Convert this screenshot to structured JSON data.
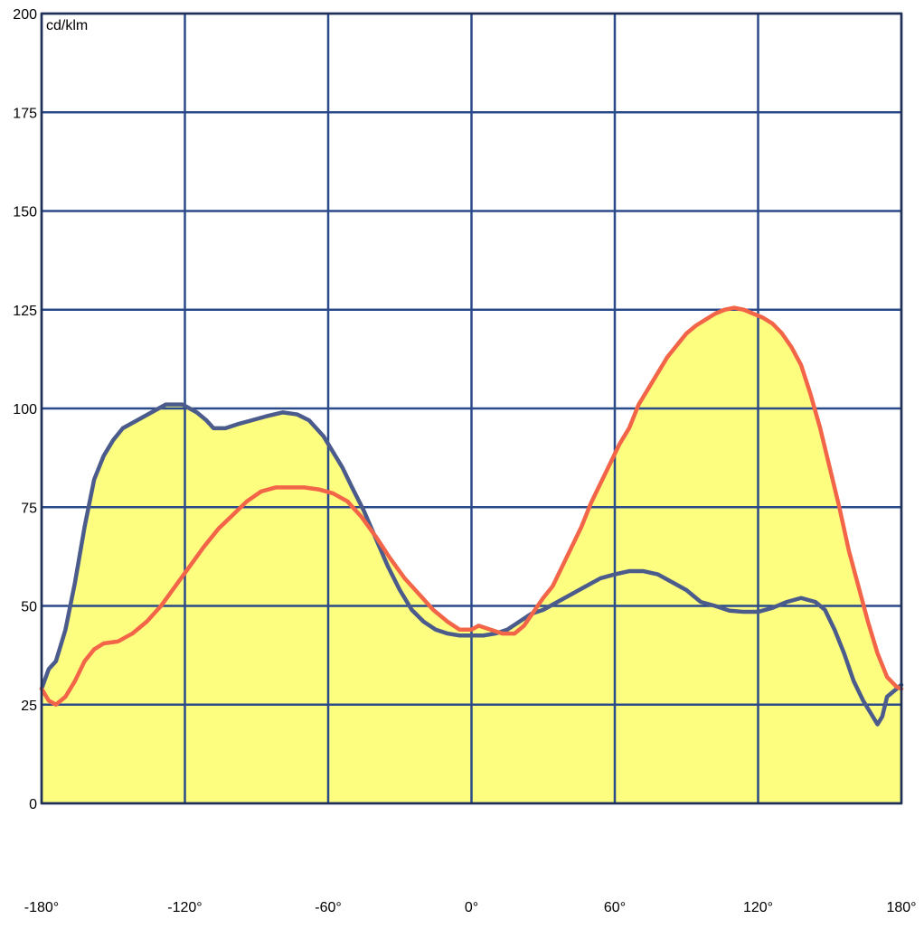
{
  "chart_data": {
    "type": "line",
    "unit_label": "cd/klm",
    "x_ticks": [
      "-180°",
      "-120°",
      "-60°",
      "0°",
      "60°",
      "120°",
      "180°"
    ],
    "y_ticks": [
      "0",
      "25",
      "50",
      "75",
      "100",
      "125",
      "150",
      "175",
      "200"
    ],
    "xlim": [
      -180,
      180
    ],
    "ylim": [
      0,
      200
    ],
    "grid": true,
    "colors": {
      "background_fill": "#fdfd80",
      "grid": "#2b4a8a",
      "frame": "#1f2f55",
      "series_a": "#4b5b8c",
      "series_b": "#f26548"
    },
    "series": [
      {
        "points": [
          [
            -180,
            29
          ],
          [
            -177,
            34
          ],
          [
            -174,
            36
          ],
          [
            -170,
            44
          ],
          [
            -166,
            56
          ],
          [
            -162,
            70
          ],
          [
            -158,
            82
          ],
          [
            -154,
            88
          ],
          [
            -150,
            92
          ],
          [
            -146,
            95
          ],
          [
            -140,
            97
          ],
          [
            -134,
            99
          ],
          [
            -128,
            101
          ],
          [
            -121,
            101
          ],
          [
            -115,
            99
          ],
          [
            -111,
            97
          ],
          [
            -108,
            95
          ],
          [
            -103,
            95
          ],
          [
            -98,
            96
          ],
          [
            -92,
            97
          ],
          [
            -86,
            98
          ],
          [
            -79,
            99
          ],
          [
            -73,
            98.5
          ],
          [
            -68,
            97
          ],
          [
            -62,
            93
          ],
          [
            -58,
            89
          ],
          [
            -54,
            85
          ],
          [
            -50,
            80
          ],
          [
            -45,
            74
          ],
          [
            -40,
            67
          ],
          [
            -35,
            60
          ],
          [
            -30,
            54
          ],
          [
            -25,
            49
          ],
          [
            -20,
            46
          ],
          [
            -15,
            44
          ],
          [
            -10,
            43
          ],
          [
            -5,
            42.5
          ],
          [
            0,
            42.5
          ],
          [
            5,
            42.5
          ],
          [
            10,
            43
          ],
          [
            15,
            44
          ],
          [
            20,
            46
          ],
          [
            25,
            48
          ],
          [
            30,
            49
          ],
          [
            36,
            51
          ],
          [
            42,
            53
          ],
          [
            48,
            55
          ],
          [
            54,
            57
          ],
          [
            60,
            58
          ],
          [
            66,
            58.8
          ],
          [
            72,
            58.8
          ],
          [
            78,
            58
          ],
          [
            84,
            56
          ],
          [
            90,
            54
          ],
          [
            96,
            51
          ],
          [
            102,
            50
          ],
          [
            108,
            48.8
          ],
          [
            114,
            48.5
          ],
          [
            120,
            48.5
          ],
          [
            126,
            49.5
          ],
          [
            132,
            51
          ],
          [
            138,
            52
          ],
          [
            144,
            51
          ],
          [
            148,
            49
          ],
          [
            152,
            44
          ],
          [
            156,
            38
          ],
          [
            160,
            31
          ],
          [
            164,
            26
          ],
          [
            168,
            22
          ],
          [
            170,
            20
          ],
          [
            172,
            22
          ],
          [
            174,
            27
          ],
          [
            178,
            29
          ],
          [
            180,
            30
          ]
        ]
      },
      {
        "points": [
          [
            -180,
            29
          ],
          [
            -177,
            26
          ],
          [
            -174,
            25
          ],
          [
            -170,
            27
          ],
          [
            -166,
            31
          ],
          [
            -162,
            36
          ],
          [
            -158,
            39
          ],
          [
            -154,
            40.5
          ],
          [
            -148,
            41
          ],
          [
            -142,
            43
          ],
          [
            -136,
            46
          ],
          [
            -130,
            50
          ],
          [
            -124,
            55
          ],
          [
            -118,
            60
          ],
          [
            -112,
            65
          ],
          [
            -106,
            69.5
          ],
          [
            -100,
            73
          ],
          [
            -94,
            76.5
          ],
          [
            -88,
            79
          ],
          [
            -82,
            80
          ],
          [
            -76,
            80
          ],
          [
            -70,
            80
          ],
          [
            -64,
            79.5
          ],
          [
            -58,
            78.5
          ],
          [
            -52,
            76.5
          ],
          [
            -46,
            72.5
          ],
          [
            -40,
            67.5
          ],
          [
            -34,
            62
          ],
          [
            -28,
            57
          ],
          [
            -22,
            53
          ],
          [
            -16,
            49
          ],
          [
            -10,
            46
          ],
          [
            -5,
            44
          ],
          [
            0,
            44
          ],
          [
            3,
            45
          ],
          [
            8,
            44
          ],
          [
            13,
            43
          ],
          [
            18,
            43
          ],
          [
            22,
            45
          ],
          [
            26,
            48.5
          ],
          [
            30,
            52
          ],
          [
            34,
            55
          ],
          [
            38,
            60
          ],
          [
            42,
            65
          ],
          [
            46,
            70
          ],
          [
            50,
            76
          ],
          [
            54,
            81
          ],
          [
            58,
            86
          ],
          [
            62,
            91
          ],
          [
            66,
            95
          ],
          [
            70,
            101
          ],
          [
            74,
            105
          ],
          [
            78,
            109
          ],
          [
            82,
            113
          ],
          [
            86,
            116
          ],
          [
            90,
            119
          ],
          [
            94,
            121
          ],
          [
            98,
            122.5
          ],
          [
            102,
            124
          ],
          [
            106,
            125
          ],
          [
            110,
            125.5
          ],
          [
            114,
            125
          ],
          [
            118,
            124
          ],
          [
            122,
            123
          ],
          [
            126,
            121.5
          ],
          [
            130,
            119
          ],
          [
            134,
            115.5
          ],
          [
            138,
            111
          ],
          [
            142,
            103.5
          ],
          [
            146,
            95
          ],
          [
            150,
            85
          ],
          [
            154,
            75
          ],
          [
            158,
            64
          ],
          [
            162,
            55
          ],
          [
            166,
            46
          ],
          [
            170,
            38
          ],
          [
            174,
            32
          ],
          [
            178,
            29.5
          ],
          [
            180,
            29
          ]
        ]
      }
    ]
  }
}
